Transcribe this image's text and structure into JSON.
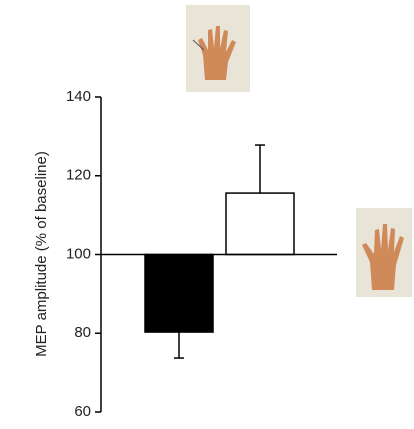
{
  "chart_data": {
    "type": "bar",
    "y_label": "MEP amplitude (% of baseline)",
    "categories": [
      null,
      null
    ],
    "values": [
      80.3,
      115.6
    ],
    "errors": [
      6.6,
      12.2
    ],
    "colors": [
      "#000000",
      "#ffffff"
    ],
    "baseline": 100,
    "ylim": [
      60,
      140
    ],
    "yticks": [
      60,
      80,
      100,
      120,
      140
    ],
    "grid": false
  }
}
